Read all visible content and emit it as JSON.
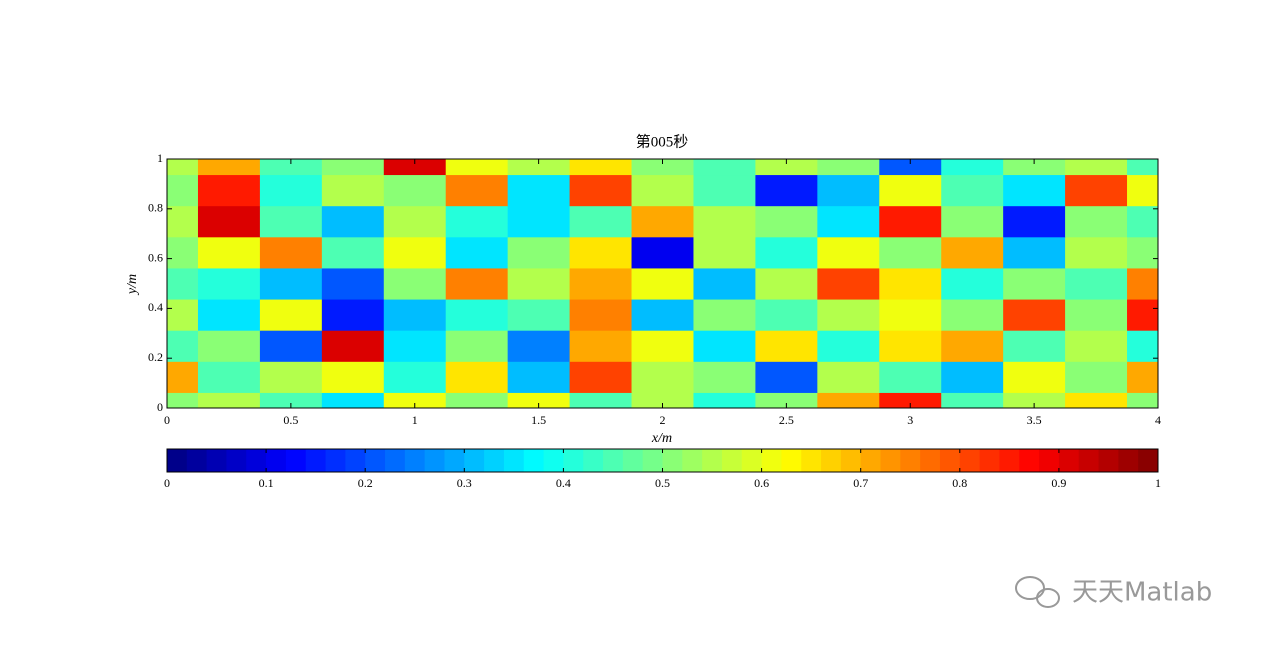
{
  "chart_data": {
    "type": "contour",
    "title": "第005秒",
    "x_label": "x/m",
    "y_label": "y/m",
    "colormap": "jet",
    "levels": 50,
    "clim": [
      0,
      1
    ],
    "x": [
      0,
      0.25,
      0.5,
      0.75,
      1,
      1.25,
      1.5,
      1.75,
      2,
      2.25,
      2.5,
      2.75,
      3,
      3.25,
      3.5,
      3.75,
      4
    ],
    "y": [
      0,
      0.125,
      0.25,
      0.375,
      0.5,
      0.625,
      0.75,
      0.875,
      1
    ],
    "z": [
      [
        0.5,
        0.55,
        0.45,
        0.35,
        0.6,
        0.5,
        0.6,
        0.45,
        0.55,
        0.4,
        0.5,
        0.7,
        0.85,
        0.45,
        0.55,
        0.65,
        0.5
      ],
      [
        0.7,
        0.45,
        0.55,
        0.6,
        0.4,
        0.65,
        0.3,
        0.8,
        0.55,
        0.5,
        0.2,
        0.55,
        0.45,
        0.3,
        0.6,
        0.5,
        0.7
      ],
      [
        0.45,
        0.5,
        0.2,
        0.9,
        0.35,
        0.5,
        0.25,
        0.7,
        0.6,
        0.35,
        0.65,
        0.4,
        0.65,
        0.7,
        0.45,
        0.55,
        0.4
      ],
      [
        0.55,
        0.35,
        0.6,
        0.15,
        0.3,
        0.4,
        0.45,
        0.75,
        0.3,
        0.5,
        0.45,
        0.55,
        0.6,
        0.5,
        0.8,
        0.5,
        0.85
      ],
      [
        0.45,
        0.4,
        0.3,
        0.2,
        0.5,
        0.75,
        0.55,
        0.7,
        0.6,
        0.3,
        0.55,
        0.8,
        0.65,
        0.4,
        0.5,
        0.45,
        0.75
      ],
      [
        0.5,
        0.6,
        0.75,
        0.45,
        0.6,
        0.35,
        0.5,
        0.65,
        0.1,
        0.55,
        0.4,
        0.6,
        0.5,
        0.7,
        0.3,
        0.55,
        0.5
      ],
      [
        0.55,
        0.9,
        0.45,
        0.3,
        0.55,
        0.4,
        0.35,
        0.45,
        0.7,
        0.55,
        0.5,
        0.35,
        0.85,
        0.5,
        0.15,
        0.5,
        0.45
      ],
      [
        0.5,
        0.85,
        0.4,
        0.55,
        0.5,
        0.75,
        0.35,
        0.8,
        0.55,
        0.45,
        0.15,
        0.3,
        0.6,
        0.45,
        0.35,
        0.8,
        0.6
      ],
      [
        0.55,
        0.7,
        0.45,
        0.5,
        0.9,
        0.6,
        0.55,
        0.65,
        0.5,
        0.45,
        0.55,
        0.5,
        0.2,
        0.4,
        0.5,
        0.55,
        0.45
      ]
    ],
    "xlim": [
      0,
      4
    ],
    "ylim": [
      0,
      1
    ],
    "xticks": [
      0,
      0.5,
      1,
      1.5,
      2,
      2.5,
      3,
      3.5,
      4
    ],
    "yticks": [
      0,
      0.2,
      0.4,
      0.6,
      0.8,
      1
    ],
    "colorbar_ticks": [
      0,
      0.1,
      0.2,
      0.3,
      0.4,
      0.5,
      0.6,
      0.7,
      0.8,
      0.9,
      1
    ]
  },
  "watermark": "天天Matlab"
}
